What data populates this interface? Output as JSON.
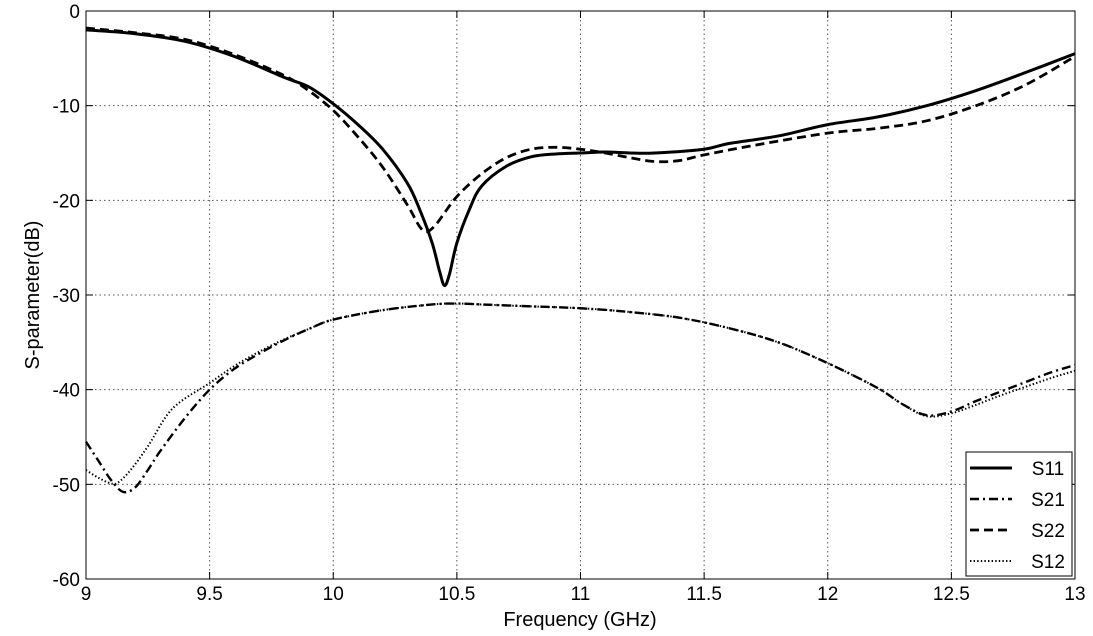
{
  "chart_data": {
    "type": "line",
    "xlabel": "Frequency (GHz)",
    "ylabel": "S-parameter(dB)",
    "xlim": [
      9,
      13
    ],
    "ylim": [
      -60,
      0
    ],
    "xticks": [
      "9",
      "9.5",
      "10",
      "10.5",
      "11",
      "11.5",
      "12",
      "12.5",
      "13"
    ],
    "yticks": [
      "0",
      "-10",
      "-20",
      "-30",
      "-40",
      "-50",
      "-60"
    ],
    "grid": true,
    "legend_position": "bottom-right",
    "series": [
      {
        "name": "S11",
        "line_style": "solid",
        "color": "#000000",
        "points": [
          [
            9.0,
            -2.0
          ],
          [
            9.2,
            -2.4
          ],
          [
            9.4,
            -3.2
          ],
          [
            9.6,
            -4.8
          ],
          [
            9.8,
            -7.0
          ],
          [
            9.9,
            -8.0
          ],
          [
            10.0,
            -9.8
          ],
          [
            10.1,
            -12.0
          ],
          [
            10.2,
            -14.6
          ],
          [
            10.3,
            -18.2
          ],
          [
            10.35,
            -21.0
          ],
          [
            10.4,
            -24.5
          ],
          [
            10.43,
            -27.5
          ],
          [
            10.45,
            -29.0
          ],
          [
            10.47,
            -27.8
          ],
          [
            10.5,
            -24.5
          ],
          [
            10.55,
            -21.0
          ],
          [
            10.6,
            -18.5
          ],
          [
            10.7,
            -16.4
          ],
          [
            10.8,
            -15.4
          ],
          [
            10.9,
            -15.1
          ],
          [
            11.0,
            -15.0
          ],
          [
            11.1,
            -14.9
          ],
          [
            11.2,
            -15.0
          ],
          [
            11.3,
            -15.0
          ],
          [
            11.5,
            -14.6
          ],
          [
            11.6,
            -14.0
          ],
          [
            11.8,
            -13.2
          ],
          [
            12.0,
            -12.0
          ],
          [
            12.2,
            -11.2
          ],
          [
            12.4,
            -10.0
          ],
          [
            12.6,
            -8.4
          ],
          [
            12.8,
            -6.5
          ],
          [
            13.0,
            -4.5
          ]
        ]
      },
      {
        "name": "S21",
        "line_style": "dashdot",
        "color": "#000000",
        "points": [
          [
            9.0,
            -45.5
          ],
          [
            9.05,
            -47.5
          ],
          [
            9.1,
            -49.5
          ],
          [
            9.15,
            -50.8
          ],
          [
            9.2,
            -50.3
          ],
          [
            9.25,
            -48.5
          ],
          [
            9.3,
            -46.5
          ],
          [
            9.4,
            -43.0
          ],
          [
            9.5,
            -40.0
          ],
          [
            9.6,
            -37.8
          ],
          [
            9.7,
            -36.2
          ],
          [
            9.8,
            -34.8
          ],
          [
            9.9,
            -33.6
          ],
          [
            10.0,
            -32.6
          ],
          [
            10.2,
            -31.6
          ],
          [
            10.4,
            -31.0
          ],
          [
            10.5,
            -30.9
          ],
          [
            10.6,
            -31.0
          ],
          [
            10.8,
            -31.2
          ],
          [
            11.0,
            -31.4
          ],
          [
            11.2,
            -31.8
          ],
          [
            11.4,
            -32.4
          ],
          [
            11.6,
            -33.5
          ],
          [
            11.8,
            -35.0
          ],
          [
            12.0,
            -37.2
          ],
          [
            12.2,
            -39.8
          ],
          [
            12.3,
            -41.5
          ],
          [
            12.4,
            -42.7
          ],
          [
            12.5,
            -42.3
          ],
          [
            12.6,
            -41.2
          ],
          [
            12.7,
            -40.2
          ],
          [
            12.8,
            -39.2
          ],
          [
            12.9,
            -38.2
          ],
          [
            13.0,
            -37.4
          ]
        ]
      },
      {
        "name": "S22",
        "line_style": "dashed",
        "color": "#000000",
        "points": [
          [
            9.0,
            -1.8
          ],
          [
            9.2,
            -2.3
          ],
          [
            9.4,
            -3.0
          ],
          [
            9.6,
            -4.6
          ],
          [
            9.8,
            -6.8
          ],
          [
            9.9,
            -8.4
          ],
          [
            10.0,
            -10.5
          ],
          [
            10.1,
            -13.3
          ],
          [
            10.2,
            -16.5
          ],
          [
            10.3,
            -20.5
          ],
          [
            10.35,
            -22.8
          ],
          [
            10.38,
            -23.3
          ],
          [
            10.42,
            -22.4
          ],
          [
            10.5,
            -19.6
          ],
          [
            10.6,
            -17.2
          ],
          [
            10.7,
            -15.5
          ],
          [
            10.8,
            -14.6
          ],
          [
            10.9,
            -14.4
          ],
          [
            11.0,
            -14.6
          ],
          [
            11.1,
            -15.0
          ],
          [
            11.2,
            -15.5
          ],
          [
            11.3,
            -15.9
          ],
          [
            11.4,
            -15.8
          ],
          [
            11.5,
            -15.2
          ],
          [
            11.7,
            -14.2
          ],
          [
            12.0,
            -12.9
          ],
          [
            12.2,
            -12.4
          ],
          [
            12.4,
            -11.6
          ],
          [
            12.6,
            -10.0
          ],
          [
            12.8,
            -7.8
          ],
          [
            13.0,
            -4.8
          ]
        ]
      },
      {
        "name": "S12",
        "line_style": "dotted",
        "color": "#000000",
        "points": [
          [
            9.0,
            -48.5
          ],
          [
            9.05,
            -49.3
          ],
          [
            9.1,
            -49.9
          ],
          [
            9.13,
            -49.8
          ],
          [
            9.18,
            -48.5
          ],
          [
            9.25,
            -46.0
          ],
          [
            9.35,
            -42.0
          ],
          [
            9.5,
            -39.3
          ],
          [
            9.6,
            -37.5
          ],
          [
            9.7,
            -36.0
          ],
          [
            9.8,
            -34.7
          ],
          [
            9.9,
            -33.6
          ],
          [
            10.0,
            -32.6
          ],
          [
            10.2,
            -31.6
          ],
          [
            10.4,
            -31.0
          ],
          [
            10.5,
            -30.9
          ],
          [
            10.6,
            -31.0
          ],
          [
            10.8,
            -31.2
          ],
          [
            11.0,
            -31.4
          ],
          [
            11.2,
            -31.8
          ],
          [
            11.4,
            -32.4
          ],
          [
            11.6,
            -33.5
          ],
          [
            11.8,
            -35.0
          ],
          [
            12.0,
            -37.2
          ],
          [
            12.2,
            -39.8
          ],
          [
            12.3,
            -41.5
          ],
          [
            12.4,
            -42.8
          ],
          [
            12.5,
            -42.5
          ],
          [
            12.6,
            -41.6
          ],
          [
            12.7,
            -40.6
          ],
          [
            12.8,
            -39.7
          ],
          [
            12.9,
            -38.8
          ],
          [
            13.0,
            -38.0
          ]
        ]
      }
    ]
  }
}
